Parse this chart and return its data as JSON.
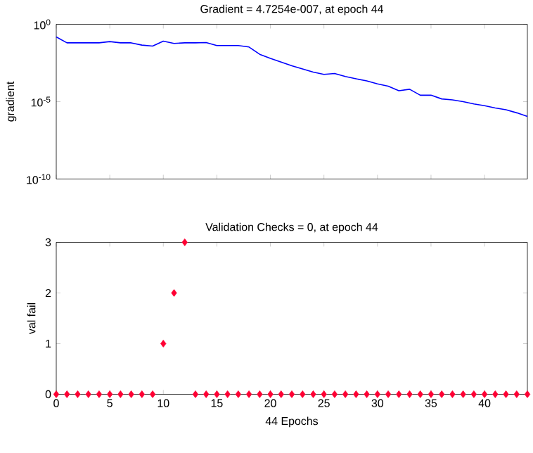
{
  "chart_data": [
    {
      "type": "line",
      "title": "Gradient = 4.7254e-007, at epoch 44",
      "ylabel": "gradient",
      "log": "y",
      "xlim": [
        0,
        44
      ],
      "xticks": [
        0,
        5,
        10,
        15,
        20,
        25,
        30,
        35,
        40
      ],
      "ylim": [
        1e-10,
        1
      ],
      "yticks": [
        {
          "value": 1,
          "label": "10$^{0}$"
        },
        {
          "value": 1e-05,
          "label": "10$^{-5}$"
        },
        {
          "value": 1e-10,
          "label": "10$^{-10}$"
        }
      ],
      "tick_labels": "y",
      "marker": "none",
      "x": [
        0,
        1,
        2,
        3,
        4,
        5,
        6,
        7,
        8,
        9,
        10,
        11,
        12,
        13,
        14,
        15,
        16,
        17,
        18,
        19,
        20,
        21,
        22,
        23,
        24,
        25,
        26,
        27,
        28,
        29,
        30,
        31,
        32,
        33,
        34,
        35,
        36,
        37,
        38,
        39,
        40,
        41,
        42,
        43,
        44
      ],
      "series": [
        {
          "color": "#0000ff",
          "values": [
            0.151,
            0.063,
            0.063,
            0.063,
            0.063,
            0.076,
            0.063,
            0.063,
            0.045,
            0.039,
            0.081,
            0.058,
            0.063,
            0.063,
            0.066,
            0.042,
            0.042,
            0.042,
            0.034,
            0.0115,
            0.0063,
            0.0036,
            0.0021,
            0.0013,
            0.00081,
            0.00058,
            0.00066,
            0.00042,
            0.0003,
            0.00022,
            0.00014,
            0.0001,
            5.1e-05,
            6.3e-05,
            2.6e-05,
            2.6e-05,
            1.5e-05,
            1.3e-05,
            1e-05,
            7.1e-06,
            5.5e-06,
            3.9e-06,
            3e-06,
            1.9e-06,
            1.1e-06
          ]
        }
      ]
    },
    {
      "type": "scatter",
      "title": "Validation Checks = 0, at epoch 44",
      "ylabel": "val fail",
      "xlabel": "44 Epochs",
      "marker": "diamond",
      "xlim": [
        0,
        44
      ],
      "xticks": [
        0,
        5,
        10,
        15,
        20,
        25,
        30,
        35,
        40
      ],
      "ylim": [
        0,
        3
      ],
      "yticks": [
        0,
        1,
        2,
        3
      ],
      "x": [
        0,
        1,
        2,
        3,
        4,
        5,
        6,
        7,
        8,
        9,
        10,
        11,
        12,
        13,
        14,
        15,
        16,
        17,
        18,
        19,
        20,
        21,
        22,
        23,
        24,
        25,
        26,
        27,
        28,
        29,
        30,
        31,
        32,
        33,
        34,
        35,
        36,
        37,
        38,
        39,
        40,
        41,
        42,
        43,
        44
      ],
      "series": [
        {
          "color": "#ff0033",
          "values": [
            0,
            0,
            0,
            0,
            0,
            0,
            0,
            0,
            0,
            0,
            1,
            2,
            3,
            0,
            0,
            0,
            0,
            0,
            0,
            0,
            0,
            0,
            0,
            0,
            0,
            0,
            0,
            0,
            0,
            0,
            0,
            0,
            0,
            0,
            0,
            0,
            0,
            0,
            0,
            0,
            0,
            0,
            0,
            0,
            0
          ]
        }
      ]
    }
  ]
}
